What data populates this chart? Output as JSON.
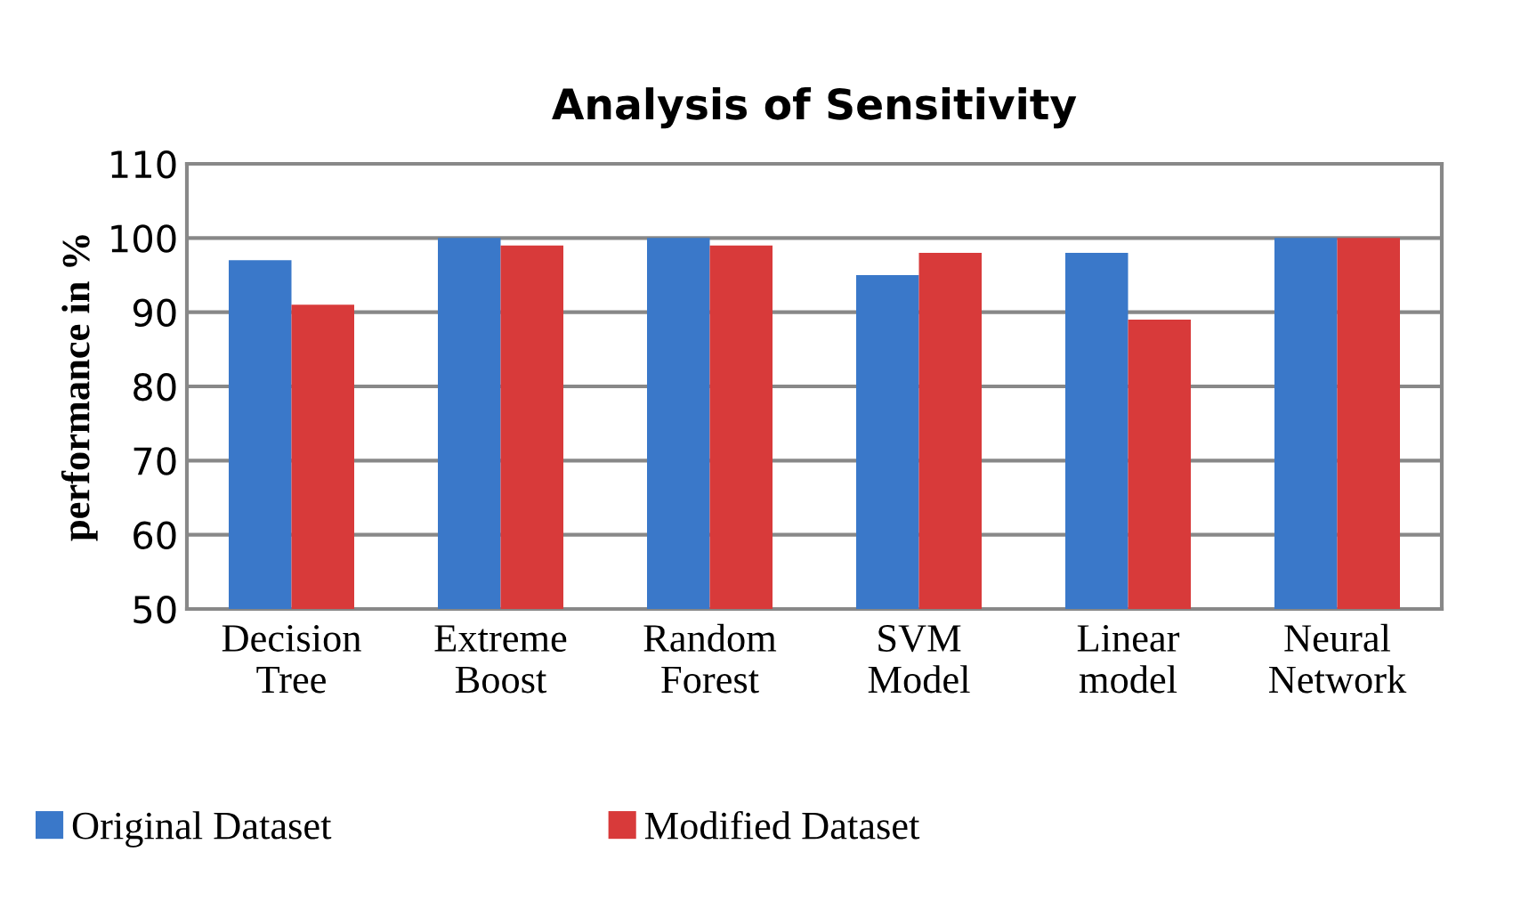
{
  "chart_data": {
    "type": "bar",
    "title": "Analysis of Sensitivity",
    "ylabel": "performance in %",
    "categories": [
      "Decision\nTree",
      "Extreme\nBoost",
      "Random\nForest",
      "SVM\nModel",
      "Linear\nmodel",
      "Neural\nNetwork"
    ],
    "series": [
      {
        "name": "Original Dataset",
        "color": "#3a78c9",
        "values": [
          97,
          100,
          100,
          95,
          98,
          100
        ]
      },
      {
        "name": "Modified Dataset",
        "color": "#d83a3a",
        "values": [
          91,
          99,
          99,
          98,
          89,
          100
        ]
      }
    ],
    "ylim": [
      50,
      110
    ],
    "yticks": [
      50,
      60,
      70,
      80,
      90,
      100,
      110
    ],
    "grid": "y",
    "legend": "bottom left"
  }
}
